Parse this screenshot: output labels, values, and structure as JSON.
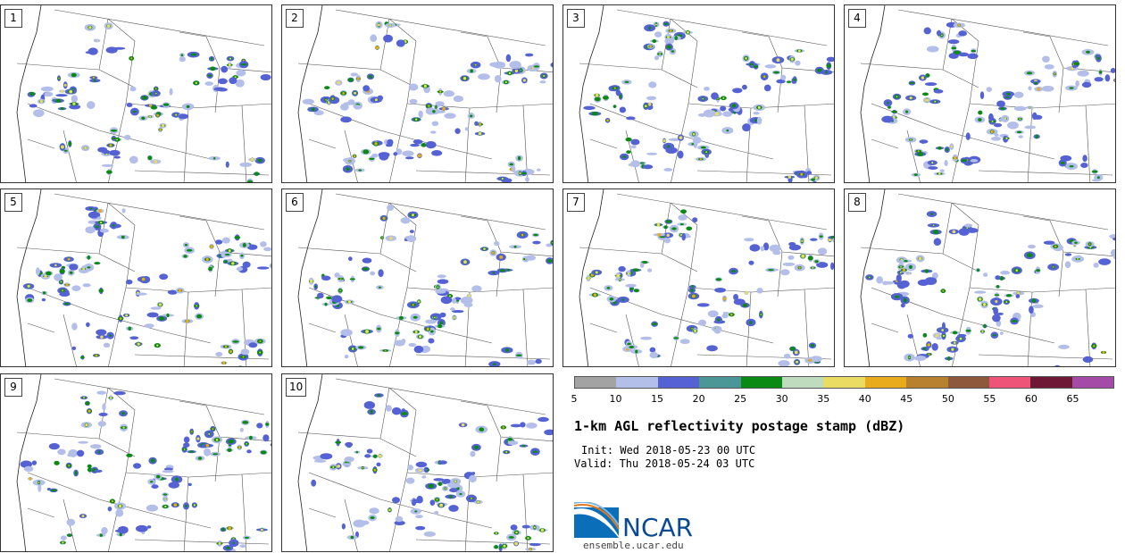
{
  "figure": {
    "title": "1-km AGL reflectivity postage stamp (dBZ)",
    "init_line": "Init: Wed 2018-05-23 00 UTC",
    "valid_line": "Valid: Thu 2018-05-24 03 UTC",
    "logo_text": "NCAR",
    "site": "ensemble.ucar.edu"
  },
  "panels": [
    {
      "label": "1"
    },
    {
      "label": "2"
    },
    {
      "label": "3"
    },
    {
      "label": "4"
    },
    {
      "label": "5"
    },
    {
      "label": "6"
    },
    {
      "label": "7"
    },
    {
      "label": "8"
    },
    {
      "label": "9"
    },
    {
      "label": "10"
    }
  ],
  "colorbar": {
    "ticks": [
      "5",
      "10",
      "15",
      "20",
      "25",
      "30",
      "35",
      "40",
      "45",
      "50",
      "55",
      "60",
      "65"
    ],
    "colors": [
      "#a3a3a3",
      "#b4bfe9",
      "#5562d4",
      "#4b9696",
      "#0a8a12",
      "#bfdcbf",
      "#eadb63",
      "#e9ab1c",
      "#b8812f",
      "#8d583c",
      "#ee5478",
      "#6e1836",
      "#a64aa8"
    ]
  }
}
